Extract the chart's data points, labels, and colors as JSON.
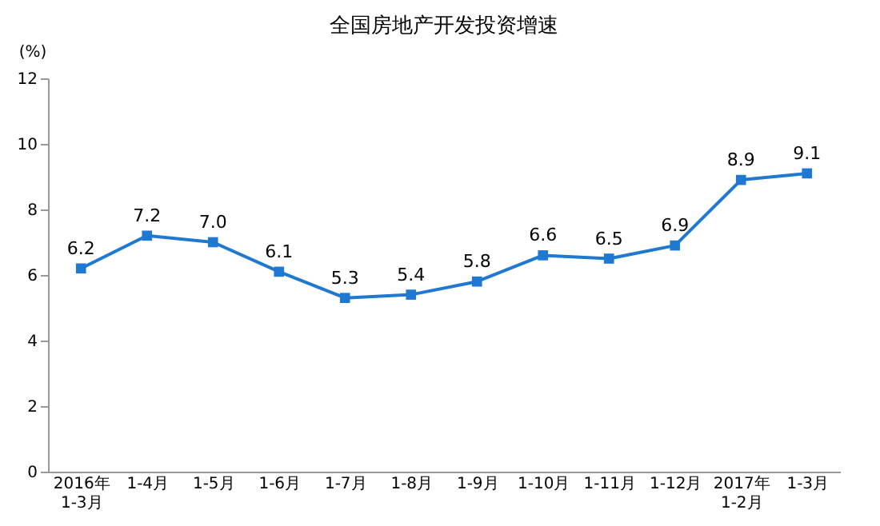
{
  "chart_data": {
    "type": "line",
    "title": "全国房地产开发投资增速",
    "ylabel": "(%)",
    "categories": [
      "2016年\n1-3月",
      "1-4月",
      "1-5月",
      "1-6月",
      "1-7月",
      "1-8月",
      "1-9月",
      "1-10月",
      "1-11月",
      "1-12月",
      "2017年\n1-2月",
      "1-3月"
    ],
    "series": [
      {
        "color": "#1f78d1",
        "values": [
          6.2,
          7.2,
          7.0,
          6.1,
          5.3,
          5.4,
          5.8,
          6.6,
          6.5,
          6.9,
          8.9,
          9.1
        ]
      }
    ],
    "value_labels": [
      "6.2",
      "7.2",
      "7.0",
      "6.1",
      "5.3",
      "5.4",
      "5.8",
      "6.6",
      "6.5",
      "6.9",
      "8.9",
      "9.1"
    ],
    "ylim": [
      0,
      12
    ],
    "yticks": [
      0,
      2,
      4,
      6,
      8,
      10,
      12
    ],
    "marker": "square",
    "grid": false
  }
}
